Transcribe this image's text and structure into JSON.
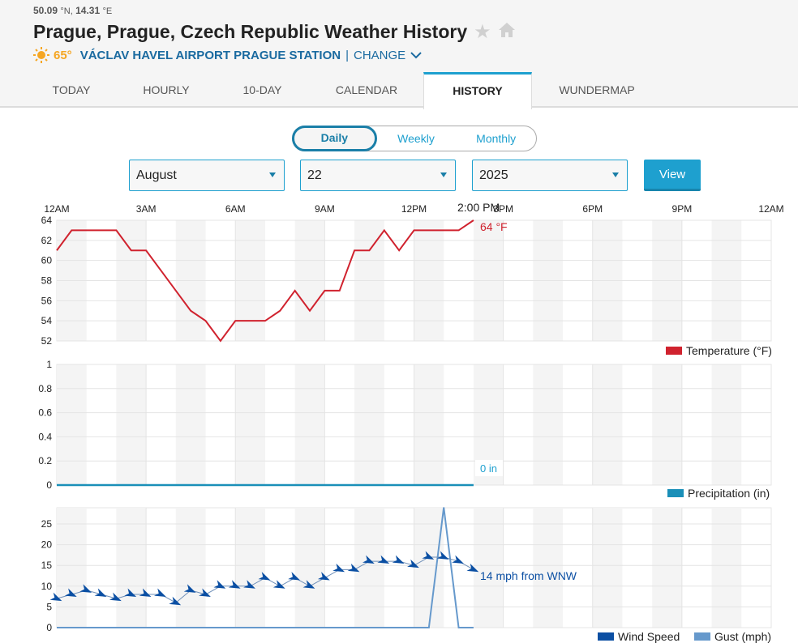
{
  "header": {
    "lat": "50.09",
    "lat_unit": "°N,",
    "lon": "14.31",
    "lon_unit": "°E",
    "title": "Prague, Prague, Czech Republic Weather History",
    "current_temp": "65°",
    "station": "VÁCLAV HAVEL AIRPORT PRAGUE STATION",
    "separator": "|",
    "change_label": "CHANGE"
  },
  "tabs": [
    {
      "label": "TODAY",
      "active": false
    },
    {
      "label": "HOURLY",
      "active": false
    },
    {
      "label": "10-DAY",
      "active": false
    },
    {
      "label": "CALENDAR",
      "active": false
    },
    {
      "label": "HISTORY",
      "active": true
    },
    {
      "label": "WUNDERMAP",
      "active": false
    }
  ],
  "period_toggle": [
    {
      "label": "Daily",
      "active": true
    },
    {
      "label": "Weekly",
      "active": false
    },
    {
      "label": "Monthly",
      "active": false
    }
  ],
  "filters": {
    "month": "August",
    "day": "22",
    "year": "2025",
    "view_label": "View"
  },
  "colors": {
    "accent": "#1ea0cf",
    "temperature": "#d0222e",
    "precipitation": "#1a8fb8",
    "wind_speed": "#0b4fa3",
    "gust": "#6699cc",
    "station_blue": "#1a6aa0",
    "sun": "#f5a623"
  },
  "chart_data": [
    {
      "type": "line",
      "title": "",
      "x_tick_labels": [
        "12AM",
        "3AM",
        "6AM",
        "9AM",
        "12PM",
        "3PM",
        "6PM",
        "9PM",
        "12AM"
      ],
      "x_hours": [
        0,
        0.5,
        1,
        1.5,
        2,
        2.5,
        3,
        3.5,
        4,
        4.5,
        5,
        5.5,
        6,
        6.5,
        7,
        7.5,
        8,
        8.5,
        9,
        9.5,
        10,
        10.5,
        11,
        11.5,
        12,
        12.5,
        13,
        13.5,
        14
      ],
      "xlim": [
        0,
        24
      ],
      "series": [
        {
          "name": "Temperature (°F)",
          "values": [
            61,
            63,
            63,
            63,
            63,
            61,
            61,
            59,
            57,
            55,
            54,
            52,
            54,
            54,
            54,
            55,
            57,
            55,
            57,
            57,
            61,
            61,
            63,
            61,
            63,
            63,
            63,
            63,
            64
          ]
        }
      ],
      "y_tick_labels": [
        "64",
        "62",
        "60",
        "58",
        "56",
        "54",
        "52"
      ],
      "ylim": [
        52,
        64
      ],
      "cursor_label": "2:00 PM",
      "value_label": "64 °F",
      "legend": "bottom-right",
      "grid": true
    },
    {
      "type": "area",
      "x_hours": [
        0,
        14
      ],
      "xlim": [
        0,
        24
      ],
      "series": [
        {
          "name": "Precipitation (in)",
          "values": [
            0,
            0
          ]
        }
      ],
      "y_tick_labels": [
        "1",
        "0.8",
        "0.6",
        "0.4",
        "0.2",
        "0"
      ],
      "ylim": [
        0,
        1
      ],
      "value_label": "0 in",
      "legend": "bottom-right",
      "grid": true
    },
    {
      "type": "line",
      "x_hours": [
        0,
        0.5,
        1,
        1.5,
        2,
        2.5,
        3,
        3.5,
        4,
        4.5,
        5,
        5.5,
        6,
        6.5,
        7,
        7.5,
        8,
        8.5,
        9,
        9.5,
        10,
        10.5,
        11,
        11.5,
        12,
        12.5,
        13,
        13.5,
        14
      ],
      "xlim": [
        0,
        24
      ],
      "series": [
        {
          "name": "Wind Speed",
          "values": [
            7,
            8,
            9,
            8,
            7,
            8,
            8,
            8,
            6,
            9,
            8,
            10,
            10,
            10,
            12,
            10,
            12,
            10,
            12,
            14,
            14,
            16,
            16,
            16,
            15,
            17,
            17,
            16,
            14
          ]
        },
        {
          "name": "Gust (mph)",
          "values": [
            0,
            0,
            0,
            0,
            0,
            0,
            0,
            0,
            0,
            0,
            0,
            0,
            0,
            0,
            0,
            0,
            0,
            0,
            0,
            0,
            0,
            0,
            0,
            0,
            0,
            0,
            29,
            0,
            0
          ]
        }
      ],
      "y_tick_labels": [
        "25",
        "20",
        "15",
        "10",
        "5",
        "0"
      ],
      "ylim": [
        0,
        29
      ],
      "value_label": "14 mph from WNW",
      "legend": "bottom-right",
      "grid": true
    }
  ]
}
